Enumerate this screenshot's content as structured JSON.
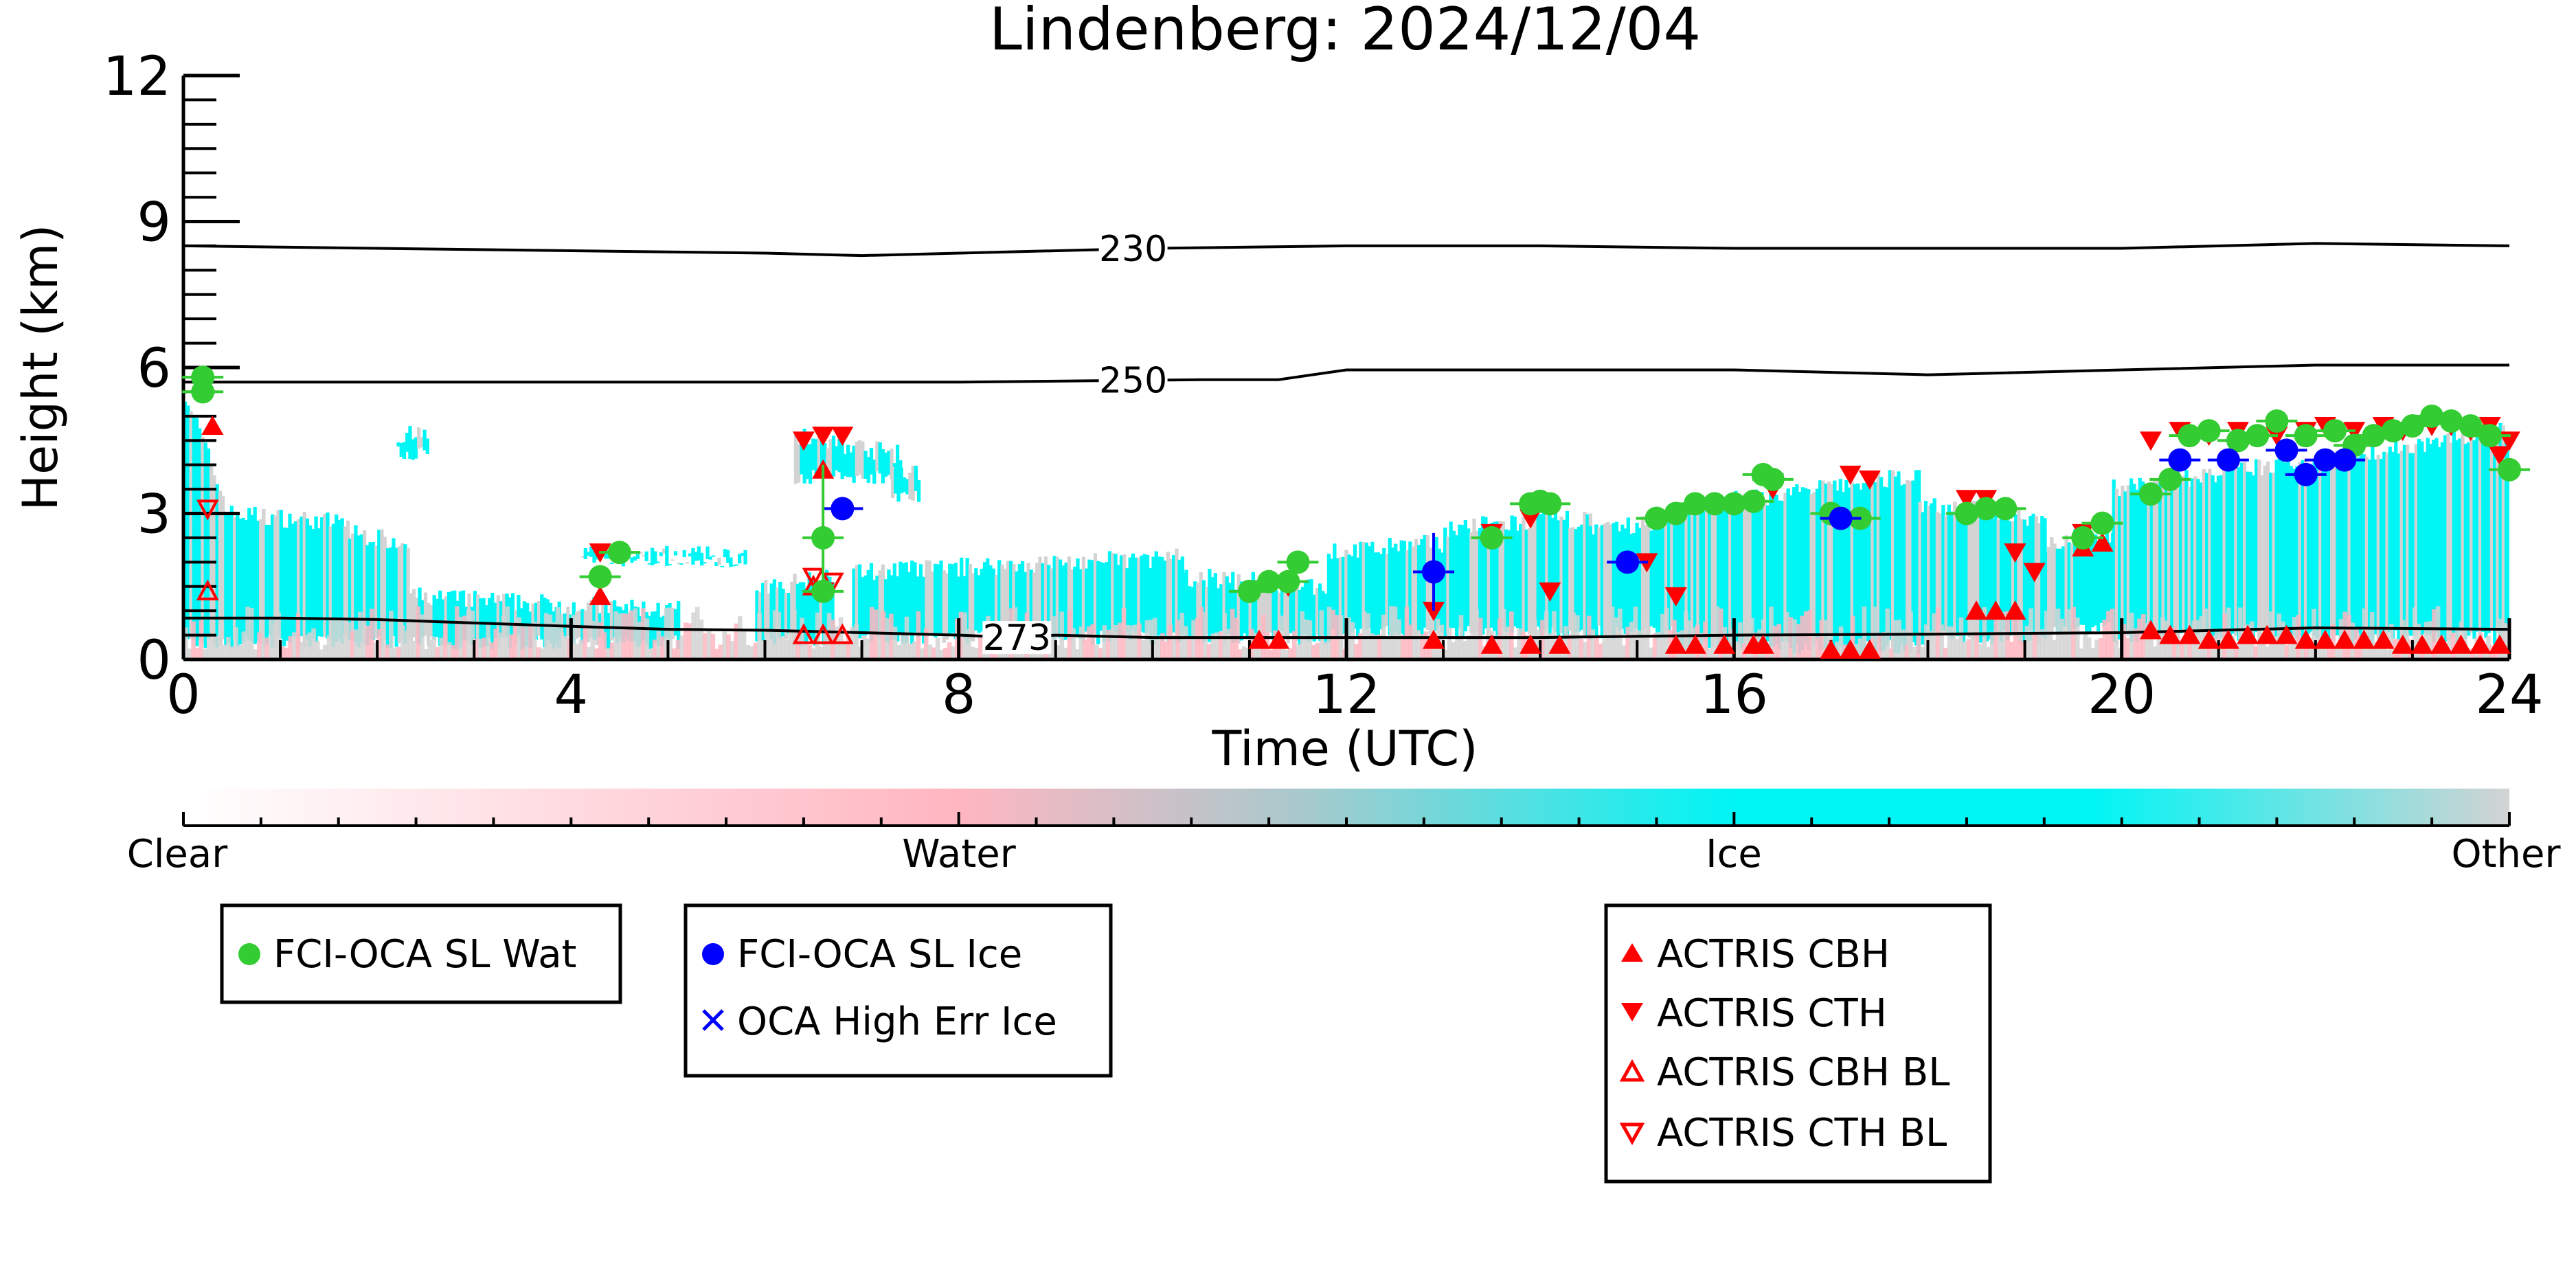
{
  "chart_data": {
    "type": "scatter",
    "title": "Lindenberg: 2024/12/04",
    "xlabel": "Time (UTC)",
    "ylabel": "Height (km)",
    "xlim": [
      0,
      24
    ],
    "ylim": [
      0,
      12
    ],
    "xticks": [
      0,
      4,
      8,
      12,
      16,
      20,
      24
    ],
    "yticks": [
      0,
      3,
      6,
      9,
      12
    ],
    "grid": false,
    "colorbar": {
      "labels": [
        "Clear",
        "Water",
        "Ice",
        "Other"
      ],
      "colors": [
        "#ffffff",
        "#ffb6c1",
        "#00f5f5",
        "#d3d3d3"
      ]
    },
    "isotherms": [
      {
        "label": "230",
        "points": [
          [
            0,
            8.5
          ],
          [
            2,
            8.45
          ],
          [
            4,
            8.4
          ],
          [
            6,
            8.35
          ],
          [
            7,
            8.3
          ],
          [
            8,
            8.35
          ],
          [
            10,
            8.45
          ],
          [
            12,
            8.5
          ],
          [
            14,
            8.5
          ],
          [
            16,
            8.45
          ],
          [
            18,
            8.45
          ],
          [
            20,
            8.45
          ],
          [
            22,
            8.55
          ],
          [
            24,
            8.5
          ]
        ]
      },
      {
        "label": "250",
        "points": [
          [
            0,
            5.7
          ],
          [
            4,
            5.7
          ],
          [
            8,
            5.7
          ],
          [
            10.5,
            5.75
          ],
          [
            11.3,
            5.75
          ],
          [
            12,
            5.95
          ],
          [
            14,
            5.95
          ],
          [
            16,
            5.95
          ],
          [
            18,
            5.85
          ],
          [
            20,
            5.95
          ],
          [
            22,
            6.05
          ],
          [
            24,
            6.05
          ]
        ]
      },
      {
        "label": "273",
        "points": [
          [
            0,
            0.85
          ],
          [
            1,
            0.85
          ],
          [
            2,
            0.82
          ],
          [
            3,
            0.75
          ],
          [
            4,
            0.68
          ],
          [
            5,
            0.62
          ],
          [
            6,
            0.6
          ],
          [
            7,
            0.55
          ],
          [
            8,
            0.5
          ],
          [
            8.6,
            0.45
          ],
          [
            9,
            0.5
          ],
          [
            10,
            0.45
          ],
          [
            12,
            0.45
          ],
          [
            14,
            0.45
          ],
          [
            16,
            0.5
          ],
          [
            18,
            0.52
          ],
          [
            20,
            0.55
          ],
          [
            22,
            0.65
          ],
          [
            24,
            0.62
          ]
        ]
      }
    ],
    "series": [
      {
        "name": "FCI-OCA SL Wat",
        "color": "#33cc33",
        "marker": "circle",
        "points": [
          [
            0.2,
            5.5
          ],
          [
            0.2,
            5.8
          ],
          [
            4.3,
            1.7
          ],
          [
            4.5,
            2.2
          ],
          [
            6.6,
            1.4
          ],
          [
            6.6,
            2.5
          ],
          [
            11.0,
            1.4
          ],
          [
            11.2,
            1.6
          ],
          [
            11.4,
            1.6
          ],
          [
            11.5,
            2.0
          ],
          [
            13.5,
            2.5
          ],
          [
            13.9,
            3.2
          ],
          [
            14.0,
            3.25
          ],
          [
            14.1,
            3.2
          ],
          [
            15.2,
            2.9
          ],
          [
            15.4,
            3.0
          ],
          [
            15.6,
            3.2
          ],
          [
            15.8,
            3.2
          ],
          [
            16.0,
            3.2
          ],
          [
            16.2,
            3.25
          ],
          [
            16.3,
            3.8
          ],
          [
            16.4,
            3.7
          ],
          [
            17.0,
            3.0
          ],
          [
            17.3,
            2.9
          ],
          [
            18.4,
            3.0
          ],
          [
            18.6,
            3.1
          ],
          [
            18.8,
            3.1
          ],
          [
            19.6,
            2.5
          ],
          [
            19.8,
            2.8
          ],
          [
            20.3,
            3.4
          ],
          [
            20.5,
            3.7
          ],
          [
            20.7,
            4.6
          ],
          [
            20.9,
            4.7
          ],
          [
            21.2,
            4.5
          ],
          [
            21.4,
            4.6
          ],
          [
            21.6,
            4.9
          ],
          [
            21.9,
            4.6
          ],
          [
            22.2,
            4.7
          ],
          [
            22.4,
            4.4
          ],
          [
            22.6,
            4.6
          ],
          [
            22.8,
            4.7
          ],
          [
            23.0,
            4.8
          ],
          [
            23.2,
            5.0
          ],
          [
            23.4,
            4.9
          ],
          [
            23.6,
            4.8
          ],
          [
            23.8,
            4.6
          ],
          [
            24.0,
            3.9
          ]
        ]
      },
      {
        "name": "FCI-OCA SL Ice",
        "color": "#0000ff",
        "marker": "circle",
        "points": [
          [
            6.8,
            3.1
          ],
          [
            12.9,
            1.8
          ],
          [
            14.9,
            2.0
          ],
          [
            17.1,
            2.9
          ],
          [
            20.6,
            4.1
          ],
          [
            21.1,
            4.1
          ],
          [
            21.7,
            4.3
          ],
          [
            21.9,
            3.8
          ],
          [
            22.1,
            4.1
          ],
          [
            22.3,
            4.1
          ]
        ]
      },
      {
        "name": "OCA High Err Ice",
        "color": "#0000ff",
        "marker": "x",
        "points": []
      },
      {
        "name": "ACTRIS CBH",
        "color": "#ff0000",
        "marker": "triangle-up",
        "points": [
          [
            0.3,
            4.8
          ],
          [
            4.3,
            1.3
          ],
          [
            6.6,
            3.9
          ],
          [
            11.1,
            0.4
          ],
          [
            11.3,
            0.4
          ],
          [
            12.9,
            0.4
          ],
          [
            13.5,
            0.3
          ],
          [
            13.9,
            0.3
          ],
          [
            14.2,
            0.3
          ],
          [
            15.4,
            0.3
          ],
          [
            15.6,
            0.3
          ],
          [
            15.9,
            0.3
          ],
          [
            16.2,
            0.3
          ],
          [
            16.3,
            0.3
          ],
          [
            17.0,
            0.2
          ],
          [
            17.2,
            0.2
          ],
          [
            17.4,
            0.2
          ],
          [
            18.5,
            1.0
          ],
          [
            18.7,
            1.0
          ],
          [
            18.9,
            1.0
          ],
          [
            19.6,
            2.3
          ],
          [
            19.8,
            2.4
          ],
          [
            20.3,
            0.6
          ],
          [
            20.5,
            0.5
          ],
          [
            20.7,
            0.5
          ],
          [
            20.9,
            0.4
          ],
          [
            21.1,
            0.4
          ],
          [
            21.3,
            0.5
          ],
          [
            21.5,
            0.5
          ],
          [
            21.7,
            0.5
          ],
          [
            21.9,
            0.4
          ],
          [
            22.1,
            0.4
          ],
          [
            22.3,
            0.4
          ],
          [
            22.5,
            0.4
          ],
          [
            22.7,
            0.4
          ],
          [
            22.9,
            0.3
          ],
          [
            23.1,
            0.3
          ],
          [
            23.3,
            0.3
          ],
          [
            23.5,
            0.3
          ],
          [
            23.7,
            0.3
          ],
          [
            23.9,
            0.3
          ]
        ]
      },
      {
        "name": "ACTRIS CTH",
        "color": "#ff0000",
        "marker": "triangle-down",
        "points": [
          [
            4.3,
            2.2
          ],
          [
            6.4,
            4.5
          ],
          [
            6.6,
            4.6
          ],
          [
            6.8,
            4.6
          ],
          [
            11.4,
            1.5
          ],
          [
            12.9,
            1.0
          ],
          [
            13.5,
            2.6
          ],
          [
            13.9,
            2.9
          ],
          [
            14.1,
            1.4
          ],
          [
            15.1,
            2.0
          ],
          [
            15.4,
            1.3
          ],
          [
            16.4,
            3.5
          ],
          [
            17.2,
            3.8
          ],
          [
            17.4,
            3.7
          ],
          [
            18.4,
            3.3
          ],
          [
            18.6,
            3.3
          ],
          [
            18.9,
            2.2
          ],
          [
            19.1,
            1.8
          ],
          [
            19.6,
            2.6
          ],
          [
            20.3,
            4.5
          ],
          [
            20.6,
            4.7
          ],
          [
            20.9,
            4.6
          ],
          [
            21.2,
            4.7
          ],
          [
            21.6,
            4.6
          ],
          [
            21.9,
            4.7
          ],
          [
            22.1,
            4.8
          ],
          [
            22.4,
            4.7
          ],
          [
            22.7,
            4.8
          ],
          [
            22.9,
            4.7
          ],
          [
            23.2,
            4.8
          ],
          [
            23.4,
            4.8
          ],
          [
            23.6,
            4.7
          ],
          [
            23.8,
            4.8
          ],
          [
            24.0,
            4.5
          ],
          [
            23.9,
            4.2
          ]
        ]
      },
      {
        "name": "ACTRIS CBH BL",
        "color": "#ff0000",
        "marker": "triangle-up-open",
        "points": [
          [
            0.25,
            1.4
          ],
          [
            6.4,
            0.5
          ],
          [
            6.6,
            0.5
          ],
          [
            6.8,
            0.5
          ],
          [
            6.5,
            1.5
          ]
        ]
      },
      {
        "name": "ACTRIS CTH BL",
        "color": "#ff0000",
        "marker": "triangle-down-open",
        "points": [
          [
            0.25,
            3.1
          ],
          [
            6.5,
            1.7
          ],
          [
            6.7,
            1.6
          ],
          [
            6.6,
            1.4
          ]
        ]
      }
    ],
    "legends": [
      {
        "entries": [
          0
        ]
      },
      {
        "entries": [
          1,
          2
        ]
      },
      {
        "entries": [
          3,
          4,
          5,
          6
        ]
      }
    ]
  }
}
